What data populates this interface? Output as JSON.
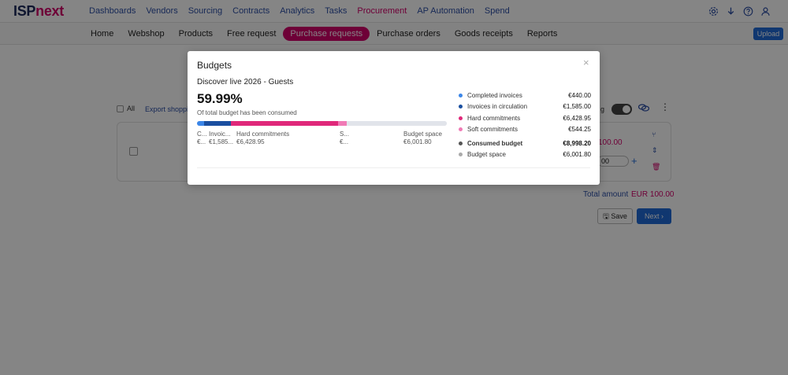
{
  "brand": {
    "part1": "ISP",
    "part2": "next"
  },
  "main_nav": [
    {
      "label": "Dashboards",
      "active": false
    },
    {
      "label": "Vendors",
      "active": false
    },
    {
      "label": "Sourcing",
      "active": false
    },
    {
      "label": "Contracts",
      "active": false
    },
    {
      "label": "Analytics",
      "active": false
    },
    {
      "label": "Tasks",
      "active": false
    },
    {
      "label": "Procurement",
      "active": true
    },
    {
      "label": "AP Automation",
      "active": false
    },
    {
      "label": "Spend",
      "active": false
    }
  ],
  "top_icons": [
    "settings-icon",
    "download-icon",
    "help-icon",
    "user-icon"
  ],
  "sub_nav": [
    {
      "label": "Home",
      "active": false
    },
    {
      "label": "Webshop",
      "active": false
    },
    {
      "label": "Products",
      "active": false
    },
    {
      "label": "Free request",
      "active": false
    },
    {
      "label": "Purchase requests",
      "active": true
    },
    {
      "label": "Purchase orders",
      "active": false
    },
    {
      "label": "Goods receipts",
      "active": false
    },
    {
      "label": "Reports",
      "active": false
    }
  ],
  "upload_label": "Upload",
  "background": {
    "all_label": "All",
    "export_label": "Export shoppi",
    "toggle_label": "g",
    "price": "100.00",
    "qty": "00",
    "plus": "+",
    "total_label": "Total amount",
    "total_value": "EUR 100.00",
    "save_label": "Save",
    "next_label": "Next"
  },
  "modal": {
    "title": "Budgets",
    "close": "×",
    "budget_name": "Discover live 2026 - Guests",
    "percentage": "59.99%",
    "percentage_desc": "Of total budget has been consumed",
    "bar_segments": [
      {
        "name": "completed",
        "value": 440.0,
        "color": "#3b86e8"
      },
      {
        "name": "in-circulation",
        "value": 1585.0,
        "color": "#1a4fa0"
      },
      {
        "name": "hard",
        "value": 6428.95,
        "color": "#e0287a"
      },
      {
        "name": "soft",
        "value": 544.25,
        "color": "#f07ab5"
      },
      {
        "name": "space",
        "value": 6001.8,
        "color": "#e1e4ea"
      }
    ],
    "bar_labels": [
      {
        "label": "C...",
        "value": "€..."
      },
      {
        "label": "Invoic...",
        "value": "€1,585..."
      },
      {
        "label": "Hard commitments",
        "value": "€6,428.95"
      },
      {
        "label": "S...",
        "value": "€..."
      },
      {
        "label": "Budget space",
        "value": "€6,001.80"
      }
    ],
    "legend": [
      {
        "label": "Completed invoices",
        "value": "€440.00",
        "color": "#3b86e8",
        "bold": false
      },
      {
        "label": "Invoices in circulation",
        "value": "€1,585.00",
        "color": "#1a4fa0",
        "bold": false
      },
      {
        "label": "Hard commitments",
        "value": "€6,428.95",
        "color": "#e0287a",
        "bold": false
      },
      {
        "label": "Soft commitments",
        "value": "€544.25",
        "color": "#f07ab5",
        "bold": false
      },
      {
        "label": "Consumed budget",
        "value": "€8,998.20",
        "color": "#555555",
        "bold": true
      },
      {
        "label": "Budget space",
        "value": "€6,001.80",
        "color": "#aaaaaa",
        "bold": false
      }
    ]
  }
}
